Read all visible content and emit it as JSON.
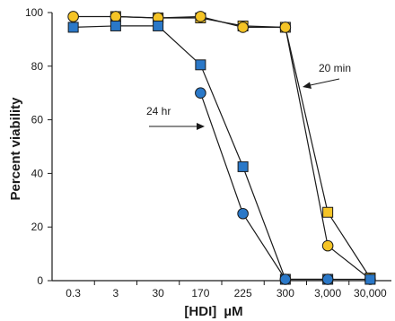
{
  "chart_data": {
    "type": "line",
    "categories": [
      "0.3",
      "3",
      "30",
      "170",
      "225",
      "300",
      "3,000",
      "30,000"
    ],
    "xlabel_prefix": "[HDI]",
    "xlabel_unit": "µM",
    "ylabel": "Percent viability",
    "ylim": [
      0,
      100
    ],
    "yticks": [
      "0",
      "20",
      "40",
      "60",
      "80",
      "100"
    ],
    "grid": false,
    "series": [
      {
        "id": "20min_square",
        "marker": "square",
        "color": "#F5C426",
        "values": [
          null,
          98.5,
          98,
          98,
          95,
          94.5,
          25.5,
          1
        ]
      },
      {
        "id": "20min_circle",
        "marker": "circle",
        "color": "#F5C426",
        "values": [
          98.5,
          98.5,
          98,
          98.5,
          94.5,
          94.5,
          13,
          0.5
        ]
      },
      {
        "id": "24hr_square",
        "marker": "square",
        "color": "#2A78C8",
        "values": [
          94.5,
          95,
          95,
          80.5,
          42.5,
          0.5,
          0.5,
          0.5
        ]
      },
      {
        "id": "24hr_circle",
        "marker": "circle",
        "color": "#2A78C8",
        "values": [
          null,
          null,
          null,
          70,
          25,
          0.5,
          0.5,
          null
        ]
      }
    ],
    "annotations": [
      {
        "text": "24 hr",
        "arrow_to_series": "24hr_circle"
      },
      {
        "text": "20 min",
        "arrow_to_series": "20min_circle"
      }
    ]
  }
}
